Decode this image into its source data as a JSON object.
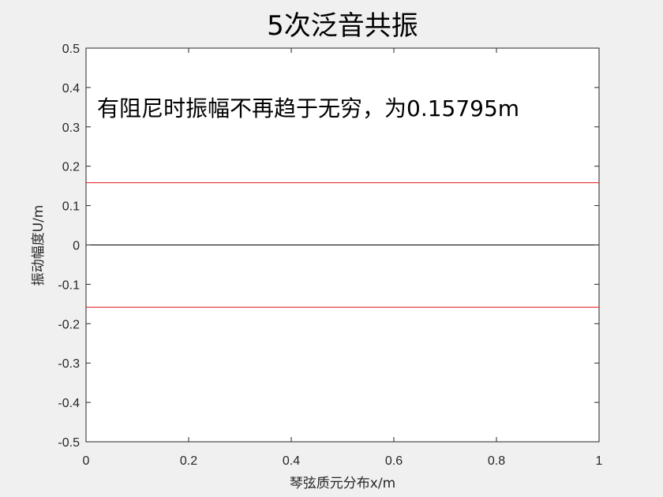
{
  "chart_data": {
    "type": "line",
    "title": "5次泛音共振",
    "xlabel": "琴弦质元分布x/m",
    "ylabel": "振动幅度U/m",
    "xlim": [
      0,
      1
    ],
    "ylim": [
      -0.5,
      0.5
    ],
    "xticks": [
      "0",
      "0.2",
      "0.4",
      "0.6",
      "0.8",
      "1"
    ],
    "yticks": [
      "0.5",
      "0.4",
      "0.3",
      "0.2",
      "0.1",
      "0",
      "-0.1",
      "-0.2",
      "-0.3",
      "-0.4",
      "-0.5"
    ],
    "grid": false,
    "annotation": "有阻尼时振幅不再趋于无穷，为0.15795m",
    "series": [
      {
        "x": [
          0,
          1
        ],
        "y": [
          0.15795,
          0.15795
        ],
        "color": "#e41a1c"
      },
      {
        "x": [
          0,
          1
        ],
        "y": [
          0,
          0
        ],
        "color": "#000000"
      },
      {
        "x": [
          0,
          1
        ],
        "y": [
          -0.15795,
          -0.15795
        ],
        "color": "#e41a1c"
      }
    ]
  }
}
